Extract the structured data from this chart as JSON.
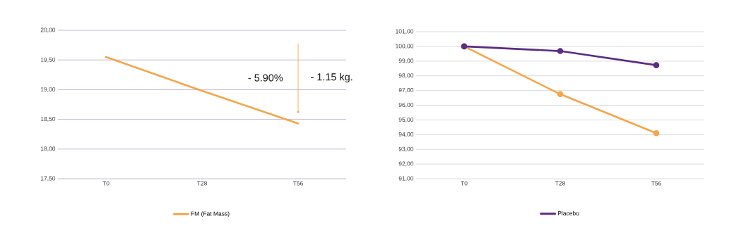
{
  "chart_data": [
    {
      "type": "line",
      "categories": [
        "T0",
        "T28",
        "T56"
      ],
      "series": [
        {
          "name": "FM (Fat Mass)",
          "color": "#f5a54a",
          "values": [
            19.55,
            18.98,
            18.43
          ]
        }
      ],
      "ylim": [
        17.5,
        20
      ],
      "yticks": [
        {
          "value": 17.5,
          "label": "17,50"
        },
        {
          "value": 18,
          "label": "18,00"
        },
        {
          "value": 18.5,
          "label": "18,50"
        },
        {
          "value": 19,
          "label": "19,00"
        },
        {
          "value": 19.5,
          "label": "19,50"
        },
        {
          "value": 20,
          "label": "20,00"
        }
      ],
      "annotations": [
        "- 5.90%",
        "- 1.15 kg."
      ],
      "grid": "y",
      "legend": "bottom"
    },
    {
      "type": "line",
      "categories": [
        "T0",
        "T28",
        "T56"
      ],
      "series": [
        {
          "color": "#f5a54a",
          "values": [
            100,
            96.75,
            94.1
          ]
        },
        {
          "name": "Placebo",
          "color": "#5b2c83",
          "values": [
            100,
            99.68,
            98.72
          ]
        }
      ],
      "ylim": [
        91,
        101
      ],
      "yticks": [
        {
          "value": 91,
          "label": "91,00"
        },
        {
          "value": 92,
          "label": "92,00"
        },
        {
          "value": 93,
          "label": "93,00"
        },
        {
          "value": 94,
          "label": "94,00"
        },
        {
          "value": 95,
          "label": "95,00"
        },
        {
          "value": 96,
          "label": "96,00"
        },
        {
          "value": 97,
          "label": "97,00"
        },
        {
          "value": 98,
          "label": "98,00"
        },
        {
          "value": 99,
          "label": "99,00"
        },
        {
          "value": 100,
          "label": "100,00"
        },
        {
          "value": 101,
          "label": "101,00"
        }
      ],
      "grid": "y",
      "legend": "bottom",
      "marker": "circle"
    }
  ]
}
